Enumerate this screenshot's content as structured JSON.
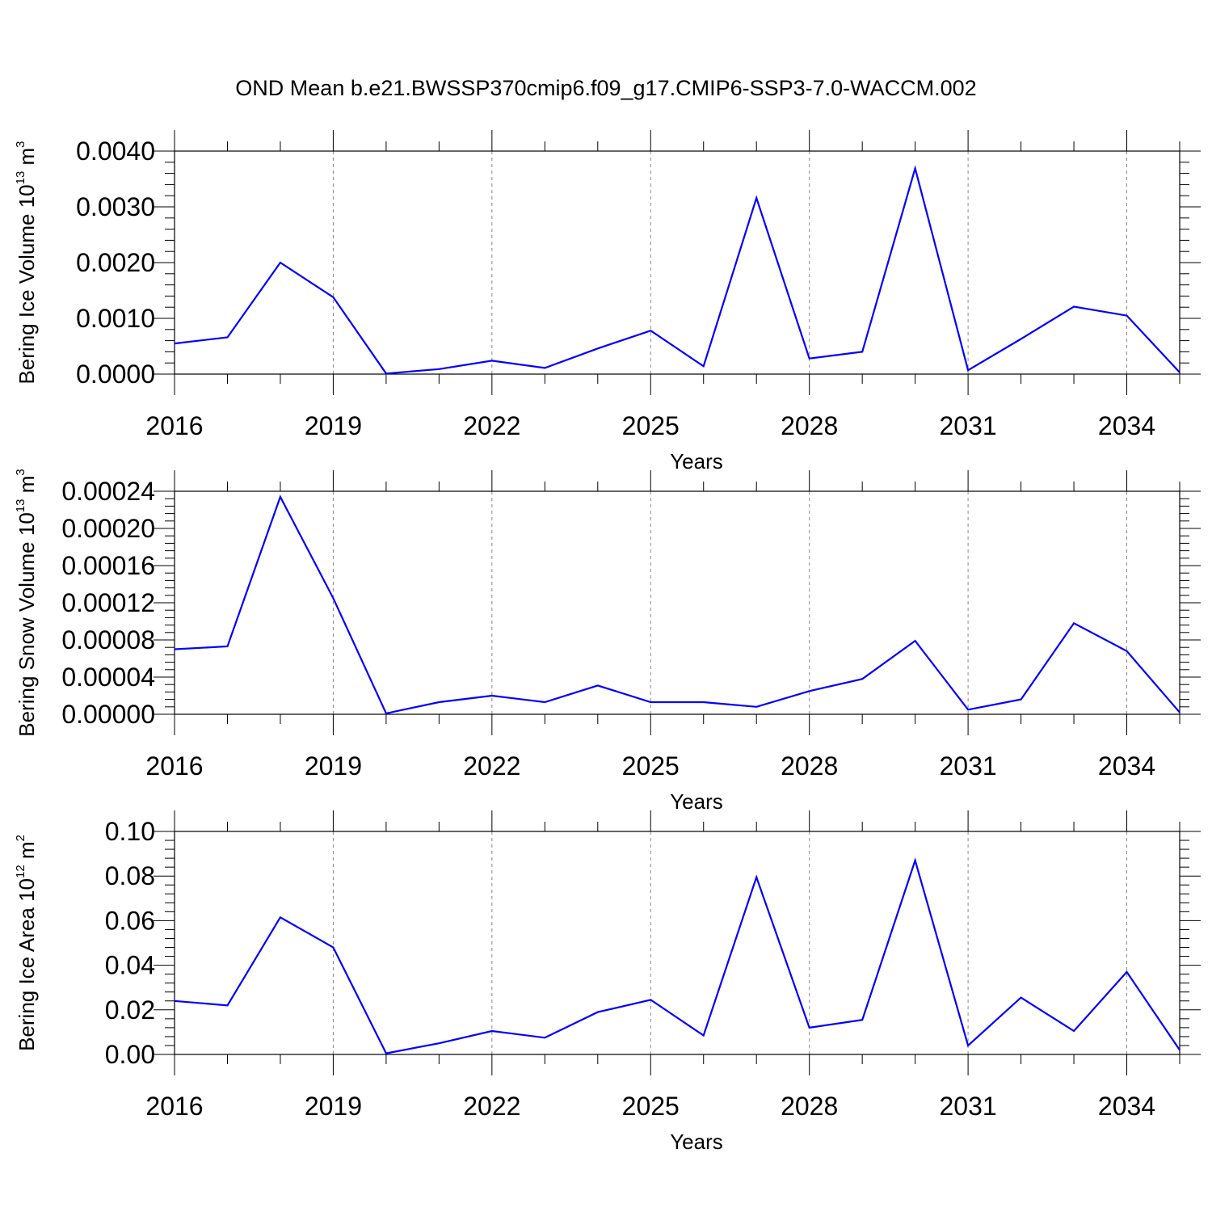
{
  "title": "OND Mean b.e21.BWSSP370cmip6.f09_g17.CMIP6-SSP3-7.0-WACCM.002",
  "line_color": "#0000ff",
  "chart_data": [
    {
      "type": "line",
      "xlabel": "Years",
      "ylabel": {
        "text": "Bering Ice Volume 10",
        "exponent": "13",
        "unit": " m",
        "unit_exponent": "3"
      },
      "xlim": [
        2016,
        2035
      ],
      "ylim": [
        0,
        0.004
      ],
      "xticks": [
        "2016",
        "2019",
        "2022",
        "2025",
        "2028",
        "2031",
        "2034"
      ],
      "yticks": [
        "0.0000",
        "0.0010",
        "0.0020",
        "0.0030",
        "0.0040"
      ],
      "x": [
        2016,
        2017,
        2018,
        2019,
        2020,
        2021,
        2022,
        2023,
        2024,
        2025,
        2026,
        2027,
        2028,
        2029,
        2030,
        2031,
        2032,
        2033,
        2034,
        2035
      ],
      "y": [
        0.00055,
        0.00066,
        0.002,
        0.00138,
        1e-05,
        9e-05,
        0.00024,
        0.00011,
        0.00046,
        0.00078,
        0.00014,
        0.00316,
        0.00028,
        0.0004,
        0.00369,
        7e-05,
        0.00063,
        0.00121,
        0.00105,
        3e-05
      ]
    },
    {
      "type": "line",
      "xlabel": "Years",
      "ylabel": {
        "text": "Bering Snow Volume 10",
        "exponent": "13",
        "unit": " m",
        "unit_exponent": "3"
      },
      "xlim": [
        2016,
        2035
      ],
      "ylim": [
        0,
        0.00024
      ],
      "xticks": [
        "2016",
        "2019",
        "2022",
        "2025",
        "2028",
        "2031",
        "2034"
      ],
      "yticks": [
        "0.00000",
        "0.00004",
        "0.00008",
        "0.00012",
        "0.00016",
        "0.00020",
        "0.00024"
      ],
      "x": [
        2016,
        2017,
        2018,
        2019,
        2020,
        2021,
        2022,
        2023,
        2024,
        2025,
        2026,
        2027,
        2028,
        2029,
        2030,
        2031,
        2032,
        2033,
        2034,
        2035
      ],
      "y": [
        7e-05,
        7.3e-05,
        0.000234,
        0.000125,
        1e-06,
        1.3e-05,
        2e-05,
        1.3e-05,
        3.1e-05,
        1.3e-05,
        1.3e-05,
        8e-06,
        2.5e-05,
        3.8e-05,
        7.9e-05,
        5e-06,
        1.6e-05,
        9.8e-05,
        6.8e-05,
        2e-06
      ]
    },
    {
      "type": "line",
      "xlabel": "Years",
      "ylabel": {
        "text": "Bering Ice Area 10",
        "exponent": "12",
        "unit": " m",
        "unit_exponent": "2"
      },
      "xlim": [
        2016,
        2035
      ],
      "ylim": [
        0,
        0.1
      ],
      "xticks": [
        "2016",
        "2019",
        "2022",
        "2025",
        "2028",
        "2031",
        "2034"
      ],
      "yticks": [
        "0.00",
        "0.02",
        "0.04",
        "0.06",
        "0.08",
        "0.10"
      ],
      "x": [
        2016,
        2017,
        2018,
        2019,
        2020,
        2021,
        2022,
        2023,
        2024,
        2025,
        2026,
        2027,
        2028,
        2029,
        2030,
        2031,
        2032,
        2033,
        2034,
        2035
      ],
      "y": [
        0.024,
        0.022,
        0.0615,
        0.048,
        0.0005,
        0.005,
        0.0105,
        0.0075,
        0.019,
        0.0245,
        0.0085,
        0.0795,
        0.012,
        0.0155,
        0.087,
        0.004,
        0.0255,
        0.0105,
        0.037,
        0.002
      ]
    }
  ]
}
